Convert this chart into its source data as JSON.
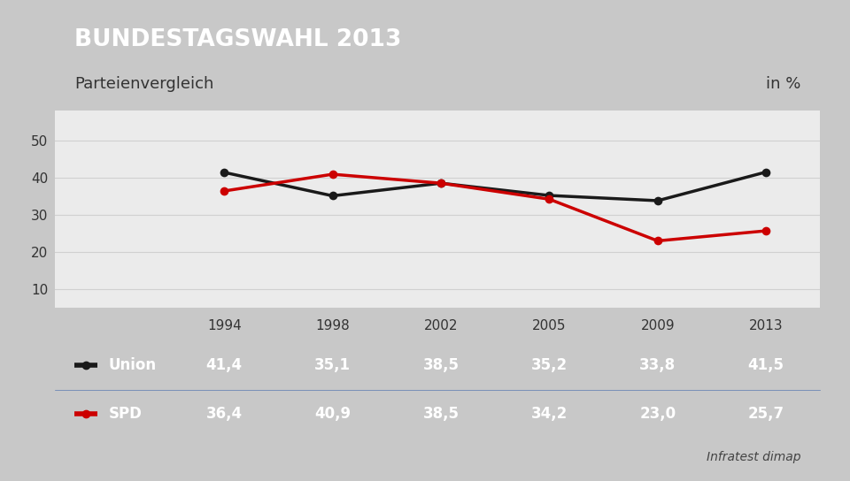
{
  "title": "BUNDESTAGSWAHL 2013",
  "subtitle": "Parteienvergleich",
  "subtitle_right": "in %",
  "years": [
    1994,
    1998,
    2002,
    2005,
    2009,
    2013
  ],
  "union_values": [
    41.4,
    35.1,
    38.5,
    35.2,
    33.8,
    41.5
  ],
  "spd_values": [
    36.4,
    40.9,
    38.5,
    34.2,
    23.0,
    25.7
  ],
  "union_color": "#1a1a1a",
  "spd_color": "#cc0000",
  "header_bg": "#1e3d7a",
  "header_text_color": "#ffffff",
  "subtitle_bg": "#f5f5f5",
  "subtitle_text_color": "#333333",
  "table_bg": "#3d6499",
  "table_text_color": "#ffffff",
  "table_header_bg": "#ffffff",
  "table_header_text": "#333333",
  "chart_bg": "#ebebeb",
  "grid_color": "#d0d0d0",
  "outer_bg": "#c8c8c8",
  "yticks": [
    10,
    20,
    30,
    40,
    50
  ],
  "ylim": [
    5,
    58
  ],
  "source": "Infratest dimap",
  "union_label": "Union",
  "spd_label": "SPD"
}
